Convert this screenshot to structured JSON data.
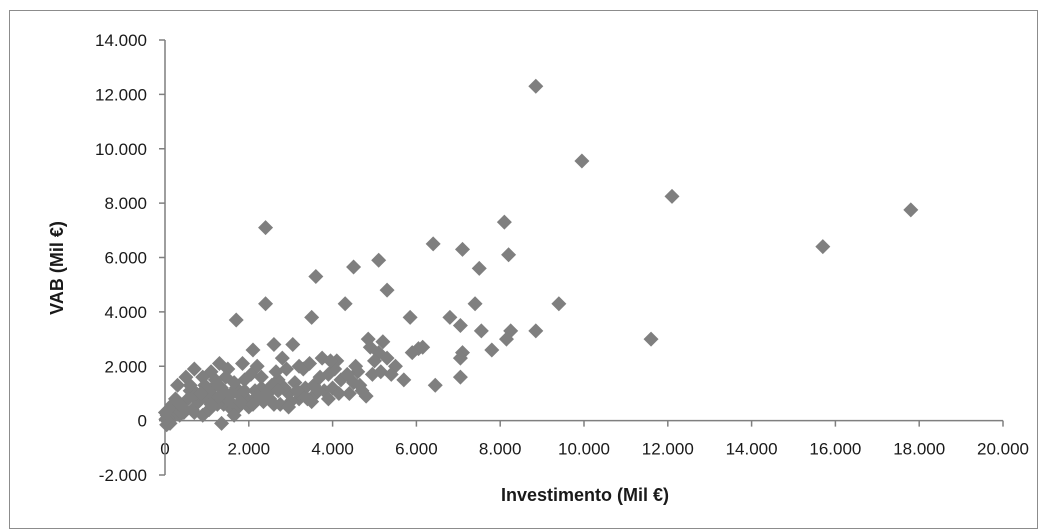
{
  "chart_data": {
    "type": "scatter",
    "title": "",
    "xlabel": "Investimento (Mil €)",
    "ylabel": "VAB (Mil €)",
    "xlim": [
      0,
      20000
    ],
    "ylim": [
      -2000,
      14000
    ],
    "x_ticks": [
      {
        "value": 0,
        "label": "0"
      },
      {
        "value": 2000,
        "label": "2.000"
      },
      {
        "value": 4000,
        "label": "4.000"
      },
      {
        "value": 6000,
        "label": "6.000"
      },
      {
        "value": 8000,
        "label": "8.000"
      },
      {
        "value": 10000,
        "label": "10.000"
      },
      {
        "value": 12000,
        "label": "12.000"
      },
      {
        "value": 14000,
        "label": "14.000"
      },
      {
        "value": 16000,
        "label": "16.000"
      },
      {
        "value": 18000,
        "label": "18.000"
      },
      {
        "value": 20000,
        "label": "20.000"
      }
    ],
    "y_ticks": [
      {
        "value": -2000,
        "label": "-2.000"
      },
      {
        "value": 0,
        "label": "0"
      },
      {
        "value": 2000,
        "label": "2.000"
      },
      {
        "value": 4000,
        "label": "4.000"
      },
      {
        "value": 6000,
        "label": "6.000"
      },
      {
        "value": 8000,
        "label": "8.000"
      },
      {
        "value": 10000,
        "label": "10.000"
      },
      {
        "value": 12000,
        "label": "12.000"
      },
      {
        "value": 14000,
        "label": "14.000"
      }
    ],
    "grid": false,
    "legend": "none",
    "marker": "diamond",
    "marker_color": "#7f7f7f",
    "series": [
      {
        "points": [
          [
            8850,
            12300
          ],
          [
            9950,
            9550
          ],
          [
            12100,
            8250
          ],
          [
            17800,
            7750
          ],
          [
            15700,
            6400
          ],
          [
            11600,
            3000
          ],
          [
            9400,
            4300
          ],
          [
            8850,
            3300
          ],
          [
            8100,
            7300
          ],
          [
            8200,
            6100
          ],
          [
            8250,
            3300
          ],
          [
            8150,
            3000
          ],
          [
            7800,
            2600
          ],
          [
            7100,
            6300
          ],
          [
            7500,
            5600
          ],
          [
            7400,
            4300
          ],
          [
            7550,
            3300
          ],
          [
            7050,
            3500
          ],
          [
            7100,
            2500
          ],
          [
            7050,
            2300
          ],
          [
            7050,
            1600
          ],
          [
            6400,
            6500
          ],
          [
            6800,
            3800
          ],
          [
            6450,
            1300
          ],
          [
            6050,
            2650
          ],
          [
            5900,
            2500
          ],
          [
            5850,
            3800
          ],
          [
            5700,
            1500
          ],
          [
            5100,
            5900
          ],
          [
            5300,
            4800
          ],
          [
            5200,
            2900
          ],
          [
            5100,
            2500
          ],
          [
            5300,
            2300
          ],
          [
            5000,
            2200
          ],
          [
            4850,
            3000
          ],
          [
            4900,
            2700
          ],
          [
            4800,
            900
          ],
          [
            4500,
            5650
          ],
          [
            4300,
            4300
          ],
          [
            4100,
            2200
          ],
          [
            4600,
            1800
          ],
          [
            4500,
            1400
          ],
          [
            3900,
            1700
          ],
          [
            4000,
            1200
          ],
          [
            3600,
            5300
          ],
          [
            3500,
            3800
          ],
          [
            2400,
            7100
          ],
          [
            2400,
            4300
          ],
          [
            2600,
            2800
          ],
          [
            2800,
            2300
          ],
          [
            3050,
            2800
          ],
          [
            3300,
            1900
          ],
          [
            3600,
            1000
          ],
          [
            3200,
            800
          ],
          [
            2700,
            1500
          ],
          [
            1700,
            3700
          ],
          [
            2100,
            2600
          ],
          [
            2200,
            2000
          ],
          [
            1900,
            1500
          ],
          [
            2300,
            1200
          ],
          [
            2500,
            800
          ],
          [
            2000,
            500
          ],
          [
            1800,
            900
          ],
          [
            1500,
            1900
          ],
          [
            1300,
            2100
          ],
          [
            1100,
            1800
          ],
          [
            1200,
            1300
          ],
          [
            1000,
            800
          ],
          [
            900,
            1600
          ],
          [
            1400,
            600
          ],
          [
            1600,
            400
          ],
          [
            1700,
            1200
          ],
          [
            1350,
            -100
          ],
          [
            700,
            1900
          ],
          [
            500,
            1600
          ],
          [
            600,
            1100
          ],
          [
            800,
            700
          ],
          [
            400,
            500
          ],
          [
            300,
            1300
          ],
          [
            200,
            300
          ],
          [
            250,
            800
          ],
          [
            350,
            200
          ],
          [
            150,
            100
          ],
          [
            100,
            0
          ],
          [
            50,
            200
          ],
          [
            120,
            -100
          ],
          [
            80,
            400
          ],
          [
            40,
            -150
          ],
          [
            60,
            100
          ],
          [
            20,
            50
          ],
          [
            10,
            300
          ],
          [
            180,
            600
          ],
          [
            450,
            300
          ],
          [
            650,
            400
          ],
          [
            900,
            200
          ],
          [
            1050,
            400
          ],
          [
            1150,
            900
          ],
          [
            1250,
            600
          ],
          [
            1450,
            1000
          ],
          [
            1550,
            700
          ],
          [
            1750,
            500
          ],
          [
            1950,
            800
          ],
          [
            2150,
            1100
          ],
          [
            2350,
            700
          ],
          [
            2550,
            1300
          ],
          [
            2750,
            600
          ],
          [
            2950,
            1000
          ],
          [
            3100,
            1400
          ],
          [
            3350,
            1200
          ],
          [
            3500,
            700
          ],
          [
            3700,
            1600
          ],
          [
            3800,
            1100
          ],
          [
            4200,
            1500
          ],
          [
            4400,
            1000
          ],
          [
            4650,
            1300
          ],
          [
            4950,
            1700
          ],
          [
            5150,
            1800
          ],
          [
            5500,
            2000
          ],
          [
            2050,
            1700
          ],
          [
            1850,
            2100
          ],
          [
            2650,
            1800
          ],
          [
            2900,
            1900
          ],
          [
            3200,
            2000
          ],
          [
            3450,
            2100
          ],
          [
            3750,
            2300
          ],
          [
            4050,
            1900
          ],
          [
            1650,
            1400
          ],
          [
            1450,
            1600
          ],
          [
            1200,
            1500
          ],
          [
            950,
            1300
          ],
          [
            750,
            1000
          ],
          [
            550,
            800
          ],
          [
            350,
            600
          ],
          [
            1000,
            1100
          ],
          [
            1300,
            900
          ],
          [
            1600,
            1000
          ],
          [
            1800,
            700
          ],
          [
            2200,
            900
          ],
          [
            2450,
            1000
          ],
          [
            2600,
            600
          ],
          [
            2850,
            1200
          ],
          [
            3000,
            700
          ],
          [
            3250,
            900
          ],
          [
            3550,
            1300
          ],
          [
            3900,
            800
          ],
          [
            4150,
            1000
          ],
          [
            4350,
            1700
          ],
          [
            700,
            300
          ],
          [
            600,
            1300
          ],
          [
            850,
            1000
          ],
          [
            1100,
            600
          ],
          [
            1350,
            1200
          ],
          [
            1650,
            200
          ],
          [
            1900,
            1100
          ],
          [
            2100,
            600
          ],
          [
            2300,
            1600
          ],
          [
            2700,
            1100
          ],
          [
            2950,
            500
          ],
          [
            3150,
            1100
          ],
          [
            3400,
            800
          ],
          [
            3650,
            1100
          ],
          [
            4700,
            1100
          ],
          [
            5400,
            1700
          ],
          [
            4550,
            2000
          ],
          [
            6150,
            2700
          ],
          [
            3950,
            2200
          ]
        ]
      }
    ]
  }
}
